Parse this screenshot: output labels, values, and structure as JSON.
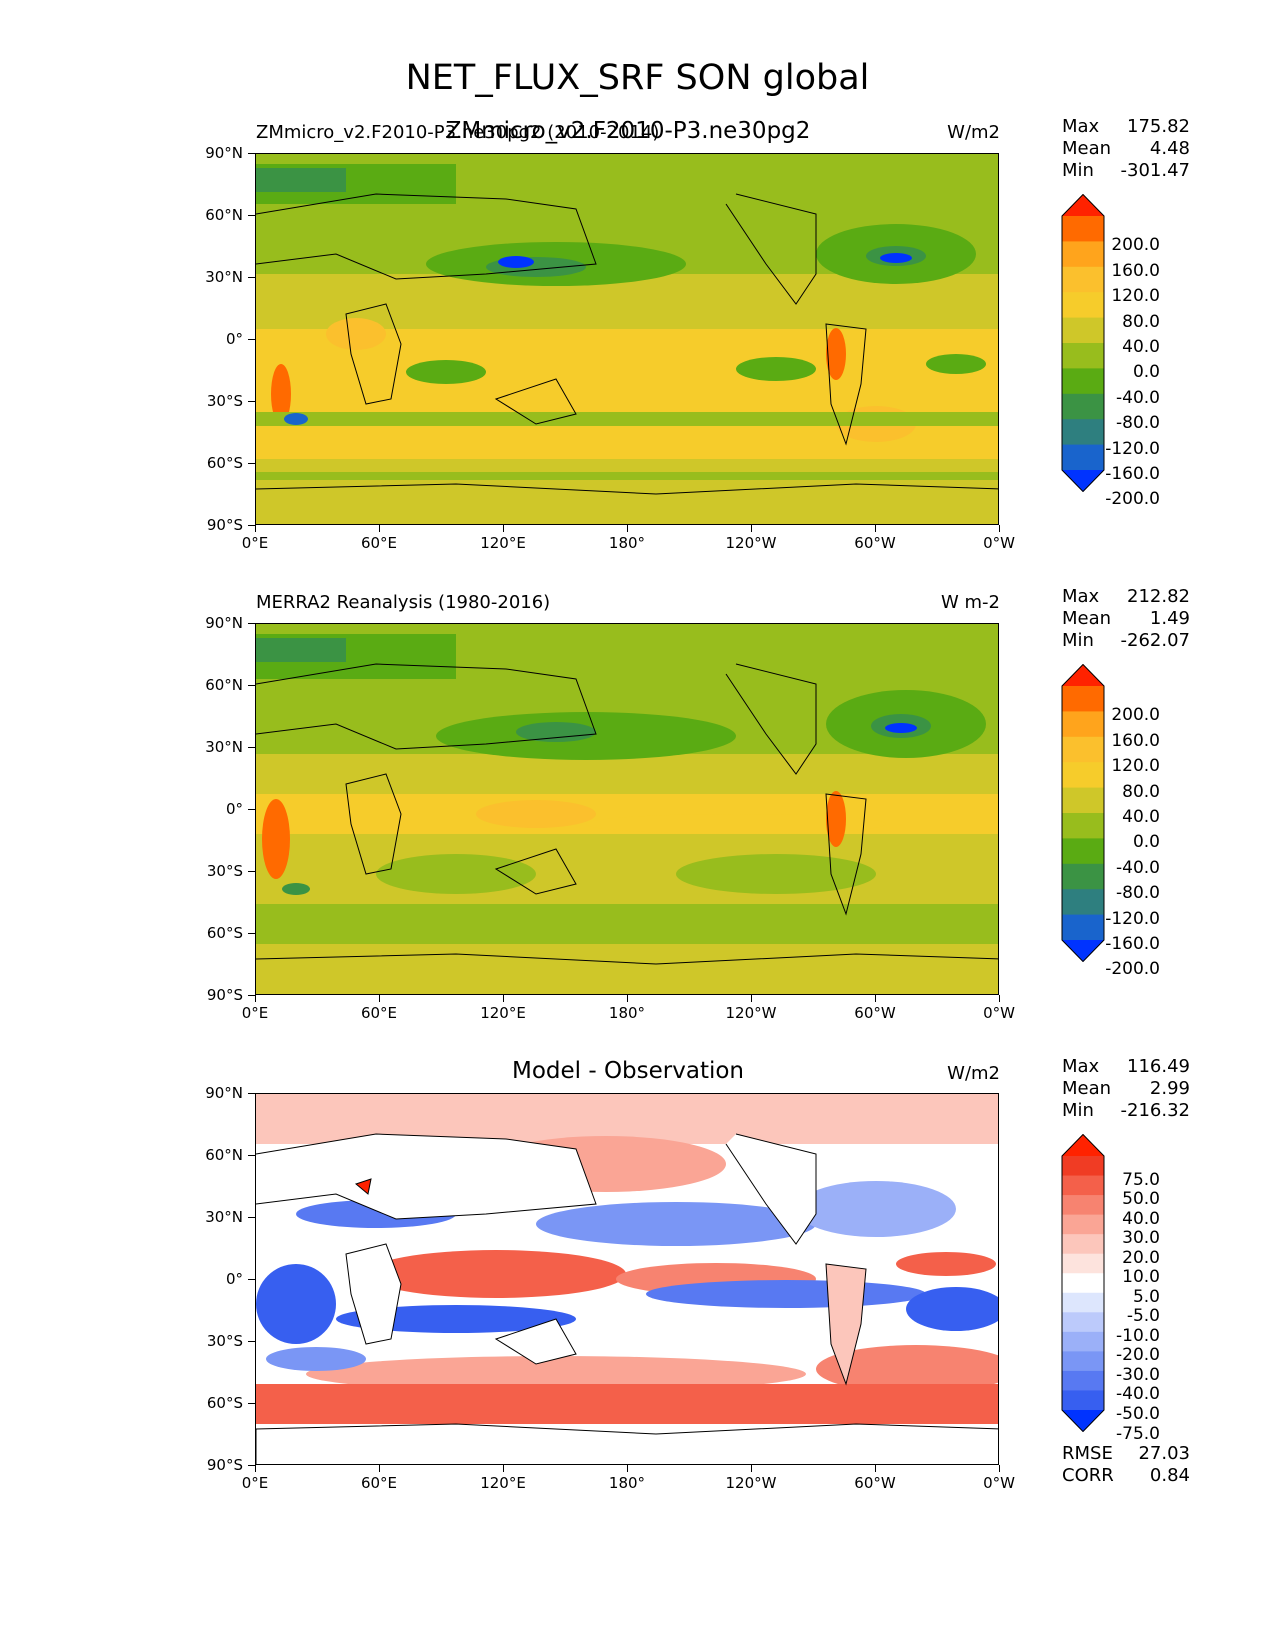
{
  "suptitle": "NET_FLUX_SRF SON global",
  "panels": [
    {
      "id": "test",
      "left_title": "ZMmicro_v2.F2010-P3.ne30pg2 (2010-2014)",
      "center_title": "ZMmicro_v2.F2010-P3.ne30pg2",
      "units": "W/m2",
      "stats": {
        "max_label": "Max",
        "max": "175.82",
        "mean_label": "Mean",
        "mean": "4.48",
        "min_label": "Min",
        "min": "-301.47"
      },
      "colorbar": {
        "labels": [
          "200.0",
          "160.0",
          "120.0",
          "80.0",
          "40.0",
          "0.0",
          "-40.0",
          "-80.0",
          "-120.0",
          "-160.0",
          "-200.0"
        ],
        "colors": [
          "#ff2200",
          "#ff6a00",
          "#ffa41c",
          "#fbc02d",
          "#f6cc2b",
          "#cfc729",
          "#98bd1d",
          "#5aab13",
          "#3b9344",
          "#2e7f7f",
          "#1964cc",
          "#0033ff"
        ]
      }
    },
    {
      "id": "ref",
      "left_title": "MERRA2 Reanalysis (1980-2016)",
      "center_title": "",
      "units": "W m-2",
      "stats": {
        "max_label": "Max",
        "max": "212.82",
        "mean_label": "Mean",
        "mean": "1.49",
        "min_label": "Min",
        "min": "-262.07"
      },
      "colorbar": {
        "labels": [
          "200.0",
          "160.0",
          "120.0",
          "80.0",
          "40.0",
          "0.0",
          "-40.0",
          "-80.0",
          "-120.0",
          "-160.0",
          "-200.0"
        ],
        "colors": [
          "#ff2200",
          "#ff6a00",
          "#ffa41c",
          "#fbc02d",
          "#f6cc2b",
          "#cfc729",
          "#98bd1d",
          "#5aab13",
          "#3b9344",
          "#2e7f7f",
          "#1964cc",
          "#0033ff"
        ]
      }
    },
    {
      "id": "diff",
      "left_title": "",
      "center_title": "Model - Observation",
      "units": "W/m2",
      "stats": {
        "max_label": "Max",
        "max": "116.49",
        "mean_label": "Mean",
        "mean": "2.99",
        "min_label": "Min",
        "min": "-216.32"
      },
      "rmse_label": "RMSE",
      "rmse": "27.03",
      "corr_label": "CORR",
      "corr": "0.84",
      "colorbar": {
        "labels": [
          "75.0",
          "50.0",
          "40.0",
          "30.0",
          "20.0",
          "10.0",
          "5.0",
          "-5.0",
          "-10.0",
          "-20.0",
          "-30.0",
          "-40.0",
          "-50.0",
          "-75.0"
        ],
        "colors": [
          "#ff2200",
          "#f03c24",
          "#f4604a",
          "#f78370",
          "#faa595",
          "#fcc6bb",
          "#fde3dd",
          "#ffffff",
          "#dde6fd",
          "#bccafb",
          "#9bb0f8",
          "#7a96f5",
          "#5879f2",
          "#375ff0",
          "#0033ff"
        ]
      }
    }
  ],
  "chart_data": {
    "type": "heatmap",
    "title": "NET_FLUX_SRF SON global",
    "x_tick_labels": [
      "0°E",
      "60°E",
      "120°E",
      "180°",
      "120°W",
      "60°W",
      "0°W"
    ],
    "y_tick_labels": [
      "90°N",
      "60°N",
      "30°N",
      "0°",
      "30°S",
      "60°S",
      "90°S"
    ],
    "x_range": [
      0,
      360
    ],
    "y_range": [
      -90,
      90
    ],
    "panels": [
      {
        "title": "ZMmicro_v2.F2010-P3.ne30pg2",
        "units": "W/m2",
        "max": 175.82,
        "mean": 4.48,
        "min": -301.47,
        "levels": [
          -200,
          -160,
          -120,
          -80,
          -40,
          0,
          40,
          80,
          120,
          160,
          200
        ]
      },
      {
        "title": "MERRA2 Reanalysis (1980-2016)",
        "units": "W m-2",
        "max": 212.82,
        "mean": 1.49,
        "min": -262.07,
        "levels": [
          -200,
          -160,
          -120,
          -80,
          -40,
          0,
          40,
          80,
          120,
          160,
          200
        ]
      },
      {
        "title": "Model - Observation",
        "units": "W/m2",
        "max": 116.49,
        "mean": 2.99,
        "min": -216.32,
        "rmse": 27.03,
        "corr": 0.84,
        "levels": [
          -75,
          -50,
          -40,
          -30,
          -20,
          -10,
          -5,
          5,
          10,
          20,
          30,
          40,
          50,
          75
        ]
      }
    ]
  }
}
